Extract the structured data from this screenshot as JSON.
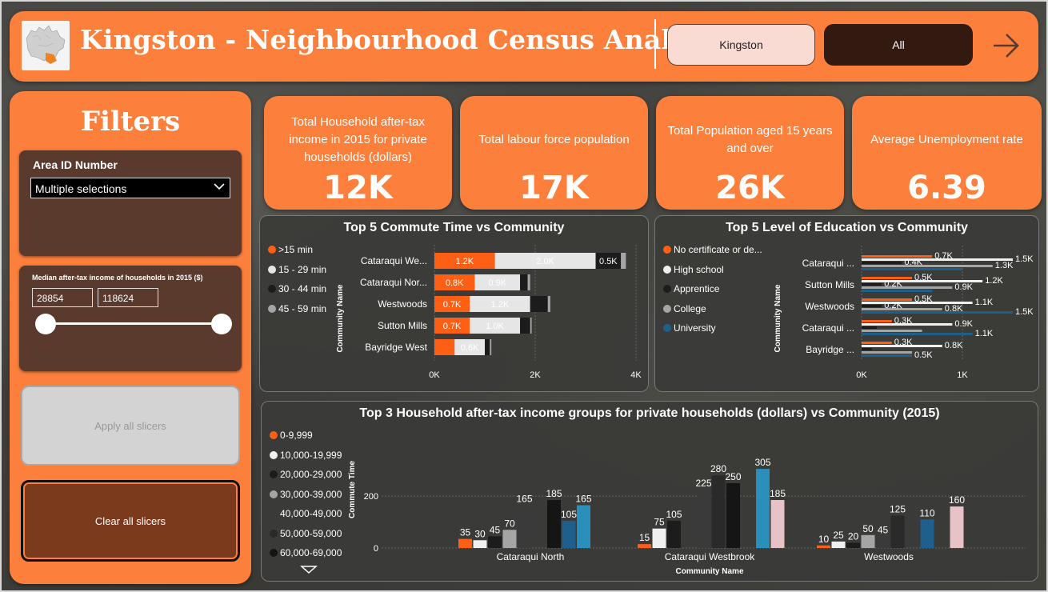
{
  "header": {
    "title": "Kingston - Neighbourhood Census Analysis",
    "city_button": "Kingston",
    "all_button": "All",
    "next_icon": "arrow-right-icon"
  },
  "filters": {
    "title": "Filters",
    "area_slicer": {
      "label": "Area ID Number",
      "value": "Multiple selections"
    },
    "income_slicer": {
      "label": "Median after-tax income of households in 2015 ($)",
      "min": "28854",
      "max": "118624"
    },
    "apply_label": "Apply all slicers",
    "clear_label": "Clear all slicers"
  },
  "kpis": [
    {
      "label": "Total Household after-tax income in 2015 for private households (dollars)",
      "value": "12K"
    },
    {
      "label": "Total labour force population",
      "value": "17K"
    },
    {
      "label": "Total Population aged 15 years and over",
      "value": "26K"
    },
    {
      "label": "Average Unemployment rate",
      "value": "6.39"
    }
  ],
  "colors": {
    "orange": "#fd7f3c",
    "dark_brown": "#321a11",
    "light": "#e6e6e6",
    "black": "#1c1c1c",
    "grey": "#a5a5a5",
    "blue": "#1f5f8b",
    "teal": "#2b8fbc",
    "pink": "#e7c3c7"
  },
  "chart_data": [
    {
      "type": "bar",
      "orientation": "horizontal",
      "stacked": true,
      "title": "Top 5 Commute Time vs Community",
      "ylabel": "Community Name",
      "categories": [
        "Cataraqui We...",
        "Cataraqui Nor...",
        "Westwoods",
        "Sutton Mills",
        "Bayridge West"
      ],
      "series": [
        {
          "name": ">15 min",
          "color": "#fd5f14",
          "values": [
            1200,
            800,
            700,
            700,
            400
          ],
          "labels": [
            "1.2K",
            "0.8K",
            "0.7K",
            "0.7K",
            ""
          ]
        },
        {
          "name": "15 - 29 min",
          "color": "#e6e6e6",
          "values": [
            2000,
            900,
            1200,
            1000,
            600
          ],
          "labels": [
            "2.0K",
            "0.9K",
            "1.2K",
            "1.0K",
            "0.6K"
          ]
        },
        {
          "name": "30 - 44 min",
          "color": "#1c1c1c",
          "values": [
            500,
            150,
            350,
            200,
            100
          ],
          "labels": [
            "0.5K",
            "",
            "",
            "",
            ""
          ]
        },
        {
          "name": "45 - 59 min",
          "color": "#a5a5a5",
          "values": [
            100,
            50,
            50,
            30,
            30
          ],
          "labels": [
            "",
            "",
            "",
            "",
            ""
          ]
        }
      ],
      "ticks": [
        "0K",
        "2K",
        "4K"
      ],
      "xlim": [
        0,
        4000
      ]
    },
    {
      "type": "bar",
      "orientation": "horizontal",
      "title": "Top 5 Level of Education vs Community",
      "ylabel": "Community Name",
      "categories": [
        "Cataraqui ...",
        "Sutton Mills",
        "Westwoods",
        "Cataraqui ...",
        "Bayridge ..."
      ],
      "series": [
        {
          "name": "No certificate or de...",
          "color": "#fd5f14",
          "values": [
            700,
            500,
            500,
            300,
            300
          ],
          "labels": [
            "0.7K",
            "0.5K",
            "0.5K",
            "0.3K",
            "0.3K"
          ]
        },
        {
          "name": "High school",
          "color": "#f0f0f0",
          "values": [
            1500,
            1200,
            1100,
            900,
            800
          ],
          "labels": [
            "1.5K",
            "1.2K",
            "1.1K",
            "0.9K",
            "0.8K"
          ]
        },
        {
          "name": "Apprentice",
          "color": "#1c1c1c",
          "values": [
            400,
            200,
            200,
            150,
            100
          ],
          "labels": [
            "0.4K",
            "0.2K",
            "0.2K",
            "",
            ""
          ]
        },
        {
          "name": "College",
          "color": "#a5a5a5",
          "values": [
            1300,
            900,
            800,
            600,
            500
          ],
          "labels": [
            "1.3K",
            "0.9K",
            "0.8K",
            "",
            ""
          ]
        },
        {
          "name": "University",
          "color": "#1f5f8b",
          "values": [
            1000,
            700,
            1500,
            1100,
            500
          ],
          "labels": [
            "",
            "",
            "1.5K",
            "1.1K",
            "0.5K"
          ]
        }
      ],
      "ticks": [
        "0K",
        "1K"
      ],
      "xlim": [
        0,
        1500
      ]
    },
    {
      "type": "bar",
      "title": "Top 3 Household after-tax income groups for private households (dollars) vs Community (2015)",
      "xlabel": "Community Name",
      "ylabel": "Commute Time",
      "categories": [
        "Cataraqui North",
        "Cataraqui Westbrook",
        "Westwoods"
      ],
      "series": [
        {
          "name": "0-9,999",
          "color": "#fd5f14",
          "values": [
            35,
            15,
            10
          ]
        },
        {
          "name": "10,000-19,999",
          "color": "#f0f0f0",
          "values": [
            30,
            75,
            25
          ]
        },
        {
          "name": "20,000-29,000",
          "color": "#1c1c1c",
          "values": [
            45,
            105,
            20
          ]
        },
        {
          "name": "30,000-39,000",
          "color": "#a5a5a5",
          "values": [
            70,
            0,
            50
          ]
        },
        {
          "name": "40,000-49,000",
          "color": "#3a3a3a",
          "values": [
            165,
            225,
            45
          ]
        },
        {
          "name": "50,000-59,000",
          "color": "#2a2a2a",
          "values": [
            0,
            280,
            125
          ]
        },
        {
          "name": "60,000-69,000",
          "color": "#151515",
          "values": [
            185,
            250,
            0
          ]
        },
        {
          "name": "",
          "color": "#1f5f8b",
          "values": [
            105,
            0,
            110
          ]
        },
        {
          "name": "",
          "color": "#2b8fbc",
          "values": [
            165,
            305,
            0
          ]
        },
        {
          "name": "",
          "color": "#e7c3c7",
          "values": [
            0,
            185,
            160
          ]
        }
      ],
      "ticks": [
        "0",
        "200"
      ],
      "ylim": [
        0,
        330
      ]
    }
  ]
}
